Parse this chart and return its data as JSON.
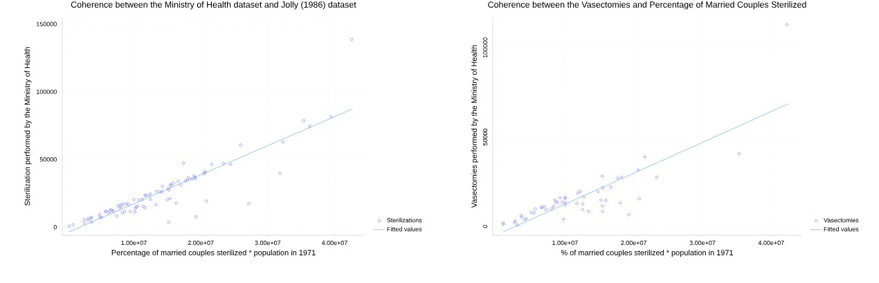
{
  "chart_data": [
    {
      "type": "scatter",
      "title": "Coherence between the Ministry of Health dataset and Jolly (1986) dataset",
      "xlabel": "Percentage of married couples sterilized * population in 1971",
      "ylabel": "Sterilization performed by the Ministry of Health",
      "xlim": [
        -700000,
        44500000
      ],
      "ylim": [
        -6000,
        155000
      ],
      "xticks": [
        {
          "value": 0,
          "label": null
        },
        {
          "value": 10000000,
          "label": "1.00e+07"
        },
        {
          "value": 20000000,
          "label": "2.00e+07"
        },
        {
          "value": 30000000,
          "label": "3.00e+07"
        },
        {
          "value": 40000000,
          "label": "4.00e+07"
        }
      ],
      "yticks": [
        0,
        50000,
        100000,
        150000
      ],
      "grid": true,
      "legend": "bottom right",
      "series": [
        {
          "name": "Sterilizations",
          "marker": "circle",
          "color": "#7b7bff",
          "x": [
            340000,
            930000,
            2590000,
            2590000,
            3170000,
            3170000,
            3590000,
            3660000,
            3690000,
            4860000,
            4900000,
            5140000,
            5720000,
            5860000,
            6280000,
            6380000,
            6620000,
            6720000,
            7000000,
            7450000,
            7660000,
            7930000,
            8000000,
            8100000,
            8280000,
            8450000,
            8620000,
            8860000,
            9170000,
            9450000,
            10000000,
            10140000,
            10200000,
            10340000,
            10550000,
            10720000,
            11280000,
            11380000,
            11660000,
            11660000,
            11790000,
            12240000,
            12480000,
            12480000,
            13280000,
            13380000,
            13830000,
            14170000,
            14280000,
            15000000,
            15140000,
            15210000,
            15210000,
            15410000,
            15480000,
            15520000,
            15930000,
            16310000,
            16620000,
            17000000,
            17410000,
            17690000,
            18000000,
            18140000,
            18620000,
            18970000,
            19140000,
            19170000,
            19280000,
            20450000,
            20590000,
            20690000,
            20830000,
            21620000,
            23380000,
            24450000,
            25930000,
            27140000,
            31830000,
            32280000,
            35380000,
            36280000,
            39450000,
            42550000
          ],
          "values": [
            680,
            1700,
            3050,
            5590,
            6270,
            5090,
            6780,
            7120,
            3900,
            9320,
            7290,
            7120,
            11700,
            11700,
            10340,
            12030,
            12880,
            12370,
            11700,
            8310,
            15930,
            14240,
            15420,
            16780,
            10510,
            16950,
            11530,
            17120,
            16950,
            11530,
            20340,
            11190,
            13730,
            14920,
            15420,
            20170,
            20680,
            15420,
            23560,
            14240,
            23390,
            23390,
            24410,
            20340,
            16610,
            26440,
            26270,
            25930,
            30170,
            20340,
            28640,
            27290,
            3560,
            21190,
            31530,
            30850,
            32370,
            17800,
            33900,
            31190,
            47290,
            34070,
            34920,
            36610,
            35420,
            37800,
            36780,
            35760,
            7630,
            39320,
            40510,
            40850,
            19320,
            46440,
            47120,
            46270,
            60680,
            17460,
            39830,
            62880,
            78640,
            74580,
            81530,
            138640
          ]
        },
        {
          "name": "Fitted values",
          "type": "line",
          "marker": "none",
          "color": "#87c5ea",
          "x": [
            340000,
            42550000
          ],
          "values": [
            -3400,
            87100
          ]
        }
      ]
    },
    {
      "type": "scatter",
      "title": "Coherence between the Vasectomies and Percentage of Married Couples Sterilized",
      "xlabel": "% of married couples sterilized * population in 1971",
      "ylabel": "Vasectomies performed by the Ministry of Health",
      "xlim": [
        -500000,
        44400000
      ],
      "ylim": [
        -5000,
        117000
      ],
      "xticks": [
        {
          "value": 0,
          "label": null
        },
        {
          "value": 10000000,
          "label": "1.00e+07"
        },
        {
          "value": 20000000,
          "label": "2.00e+07"
        },
        {
          "value": 30000000,
          "label": "3.00e+07"
        },
        {
          "value": 40000000,
          "label": "4.00e+07"
        }
      ],
      "yticks": [
        0,
        50000,
        100000
      ],
      "grid": true,
      "legend": "bottom right",
      "series": [
        {
          "name": "Vasectomies",
          "marker": "circle",
          "color": "#7b7bff",
          "x": [
            1010000,
            1010000,
            2660000,
            2760000,
            3060000,
            3630000,
            3730000,
            4130000,
            4400000,
            5080000,
            5480000,
            5680000,
            6520000,
            6690000,
            6990000,
            7230000,
            8070000,
            8370000,
            8500000,
            8670000,
            8870000,
            9280000,
            9580000,
            9780000,
            9980000,
            10020000,
            10050000,
            10050000,
            11730000,
            11870000,
            12200000,
            12570000,
            12570000,
            12740000,
            13410000,
            14790000,
            15230000,
            15430000,
            15460000,
            15460000,
            15530000,
            15930000,
            16640000,
            17680000,
            18050000,
            18220000,
            19290000,
            20640000,
            20810000,
            21610000,
            23360000,
            35340000,
            42270000
          ],
          "values": [
            1800,
            1160,
            2050,
            2950,
            770,
            6160,
            5260,
            3850,
            4240,
            7830,
            7570,
            9760,
            10660,
            10270,
            11170,
            9370,
            10010,
            11300,
            14890,
            13860,
            13350,
            16050,
            13610,
            3980,
            15660,
            13350,
            12070,
            16170,
            12840,
            18610,
            19510,
            12580,
            9370,
            16430,
            8340,
            19380,
            14760,
            27990,
            11430,
            8340,
            21440,
            14510,
            22080,
            26960,
            13090,
            27470,
            6550,
            31580,
            15530,
            38900,
            27470,
            40690,
            112820
          ]
        },
        {
          "name": "Fitted values",
          "type": "line",
          "marker": "none",
          "color": "#87c5ea",
          "x": [
            1010000,
            42500000
          ],
          "values": [
            -3100,
            68600
          ]
        }
      ]
    }
  ]
}
